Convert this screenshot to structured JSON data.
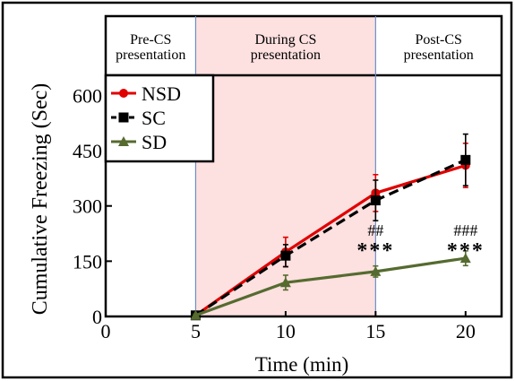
{
  "chart_data": {
    "type": "line",
    "title": "",
    "xlabel": "Time (min)",
    "ylabel": "Cumulative Freezing (Sec)",
    "xlim": [
      0,
      22
    ],
    "ylim": [
      0,
      640
    ],
    "x_ticks": [
      0,
      5,
      10,
      15,
      20
    ],
    "y_ticks": [
      0,
      150,
      300,
      450,
      600
    ],
    "grid": false,
    "legend_position": "top-left",
    "phases": [
      {
        "label_line1": "Pre-CS",
        "label_line2": "presentation",
        "x_start": 0,
        "x_end": 5,
        "shaded": false
      },
      {
        "label_line1": "During CS",
        "label_line2": "presentation",
        "x_start": 5,
        "x_end": 15,
        "shaded": true
      },
      {
        "label_line1": "Post-CS",
        "label_line2": "presentation",
        "x_start": 15,
        "x_end": 22,
        "shaded": false
      }
    ],
    "series": [
      {
        "name": "NSD",
        "color": "#e00000",
        "dash": "solid",
        "marker": "circle",
        "x": [
          5,
          10,
          15,
          20
        ],
        "y": [
          3,
          175,
          335,
          410
        ],
        "err": [
          3,
          40,
          50,
          60
        ]
      },
      {
        "name": "SC",
        "color": "#000000",
        "dash": "dashed",
        "marker": "square",
        "x": [
          5,
          10,
          15,
          20
        ],
        "y": [
          3,
          165,
          315,
          425
        ],
        "err": [
          3,
          30,
          55,
          70
        ]
      },
      {
        "name": "SD",
        "color": "#556b2f",
        "dash": "solid",
        "marker": "triangle",
        "x": [
          5,
          10,
          15,
          20
        ],
        "y": [
          3,
          92,
          122,
          158
        ],
        "err": [
          3,
          20,
          15,
          20
        ]
      }
    ],
    "annotations": [
      {
        "x": 15,
        "hash": "##",
        "stars": "***"
      },
      {
        "x": 20,
        "hash": "###",
        "stars": "***"
      }
    ],
    "colors": {
      "shade": "#fde0e0",
      "divider": "#6b8fc9",
      "frame": "#000000"
    }
  }
}
